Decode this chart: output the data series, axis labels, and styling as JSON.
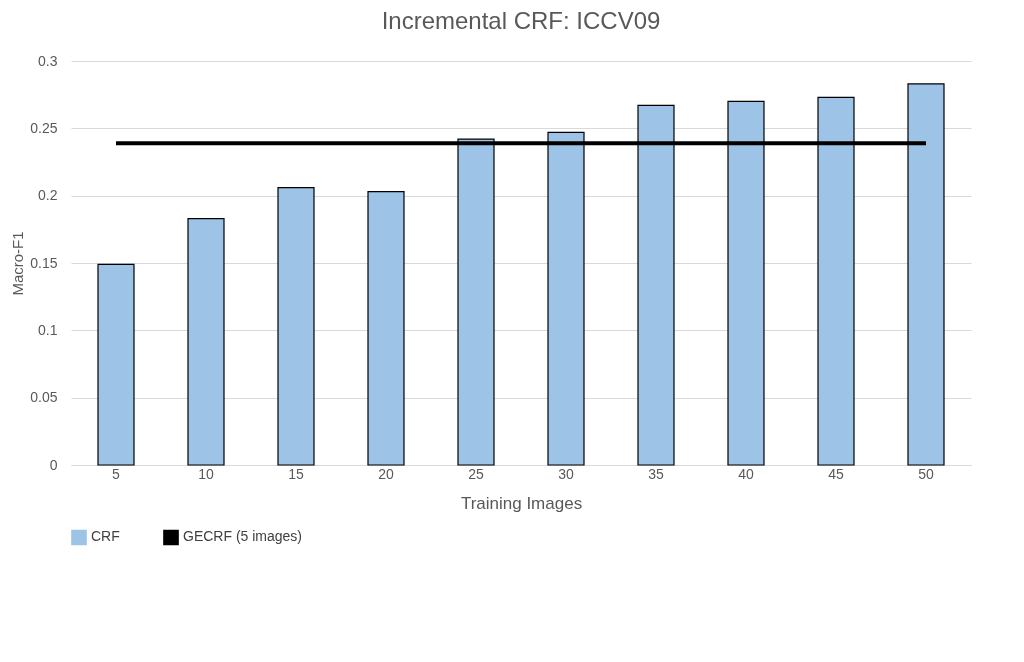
{
  "chart_data": {
    "type": "bar",
    "title": "Incremental CRF: ICCV09",
    "xlabel": "Training Images",
    "ylabel": "Macro-F1",
    "categories": [
      "5",
      "10",
      "15",
      "20",
      "25",
      "30",
      "35",
      "40",
      "45",
      "50"
    ],
    "series": [
      {
        "name": "CRF",
        "color": "#9dc3e6",
        "values": [
          0.149,
          0.183,
          0.206,
          0.203,
          0.242,
          0.247,
          0.267,
          0.27,
          0.273,
          0.283
        ]
      },
      {
        "name": "GECRF (5 images)",
        "type": "line",
        "color": "#000000",
        "values": [
          0.239,
          0.239,
          0.239,
          0.239,
          0.239,
          0.239,
          0.239,
          0.239,
          0.239,
          0.239
        ]
      }
    ],
    "ylim": [
      0,
      0.3
    ],
    "yticks": [
      0,
      0.05,
      0.1,
      0.15,
      0.2,
      0.25,
      0.3
    ],
    "grid": "y",
    "legend": "bottom"
  }
}
